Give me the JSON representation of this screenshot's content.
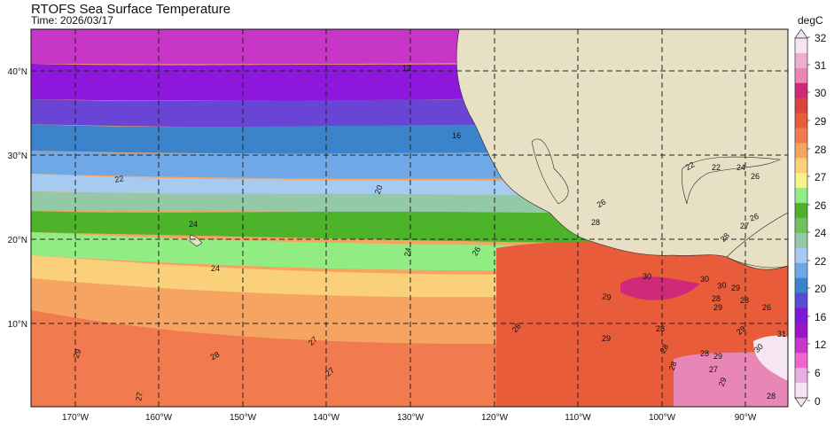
{
  "header": {
    "title": "RTOFS Sea Surface Temperature",
    "time": "Time: 2026/03/17"
  },
  "colorbar": {
    "unit": "degC",
    "labels": [
      "32",
      "31",
      "30",
      "29",
      "28",
      "27",
      "26",
      "24",
      "22",
      "20",
      "16",
      "12",
      "6",
      "0"
    ],
    "colors": [
      "#f5e6f2",
      "#f0aed0",
      "#e887b6",
      "#d0297a",
      "#d9443f",
      "#e85c3a",
      "#f27a4f",
      "#f6a462",
      "#fad07a",
      "#f7f28a",
      "#92ec84",
      "#4db32b",
      "#6fc25c",
      "#94c9a8",
      "#a7cbf0",
      "#6fa8e6",
      "#3b84cc",
      "#5a4bd2",
      "#7d18d8",
      "#9a16c4",
      "#c836c8",
      "#f064d0",
      "#e8b0e0",
      "#f6e4f4"
    ]
  },
  "map": {
    "lat_labels": [
      "40°N",
      "30°N",
      "20°N",
      "10°N"
    ],
    "lon_labels": [
      "170°W",
      "160°W",
      "150°W",
      "140°W",
      "130°W",
      "120°W",
      "110°W",
      "100°W",
      "90°W"
    ],
    "contour_labels": [
      "12",
      "16",
      "22",
      "20",
      "24",
      "24",
      "26",
      "24",
      "26",
      "28",
      "29",
      "27",
      "28",
      "27",
      "29",
      "28",
      "27",
      "29",
      "28",
      "28",
      "28",
      "30",
      "29",
      "29",
      "30",
      "28",
      "29",
      "28",
      "27",
      "28",
      "29",
      "30",
      "31",
      "28",
      "29",
      "22",
      "24",
      "26",
      "22",
      "26",
      "28",
      "27",
      "26",
      "30"
    ]
  }
}
